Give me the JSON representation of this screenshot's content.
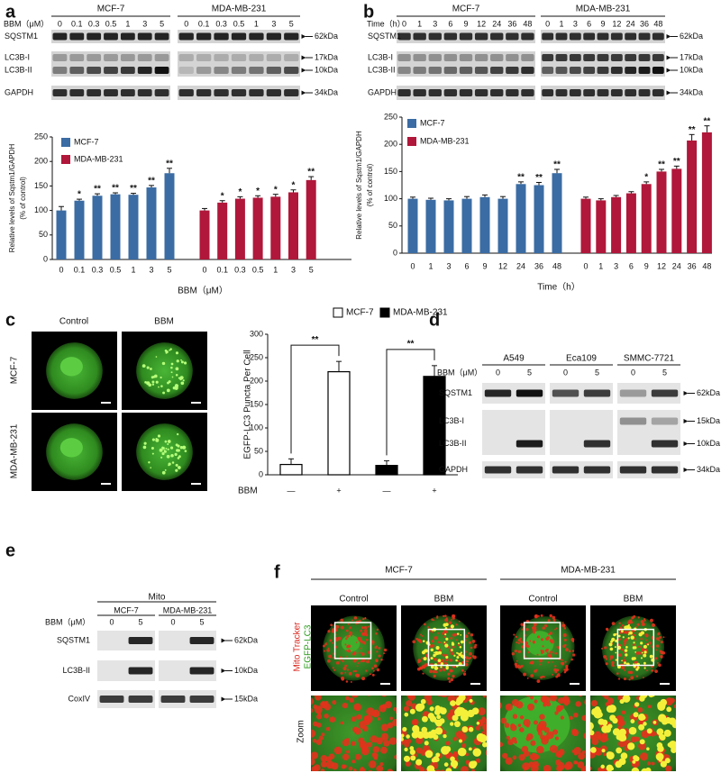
{
  "chart_data": [
    {
      "type": "bar",
      "x_label": "BBM（μM）",
      "y_label": [
        "Relative levels of Sqstm1/GAPDH",
        "(% of control)"
      ],
      "categories": [
        "0",
        "0.1",
        "0.3",
        "0.5",
        "1",
        "3",
        "5",
        "0",
        "0.1",
        "0.3",
        "0.5",
        "1",
        "3",
        "5"
      ],
      "series": [
        {
          "name": "MCF-7",
          "color": "#3b6ca3",
          "values": [
            100,
            120,
            130,
            133,
            132,
            147,
            176,
            null,
            null,
            null,
            null,
            null,
            null,
            null
          ],
          "errors": [
            8,
            3,
            4,
            3,
            3,
            4,
            10,
            null,
            null,
            null,
            null,
            null,
            null,
            null
          ],
          "annotations": [
            null,
            "*",
            "**",
            "**",
            "**",
            "**",
            "**",
            null,
            null,
            null,
            null,
            null,
            null,
            null
          ]
        },
        {
          "name": "MDA-MB-231",
          "color": "#b0173a",
          "values": [
            null,
            null,
            null,
            null,
            null,
            null,
            null,
            100,
            116,
            124,
            126,
            128,
            137,
            162
          ],
          "errors": [
            null,
            null,
            null,
            null,
            null,
            null,
            null,
            4,
            4,
            4,
            4,
            5,
            5,
            7
          ],
          "annotations": [
            null,
            null,
            null,
            null,
            null,
            null,
            null,
            null,
            "*",
            "*",
            "*",
            "*",
            "*",
            "**"
          ]
        }
      ],
      "ylim": [
        0,
        250
      ],
      "yticks": [
        0,
        50,
        100,
        150,
        200,
        250
      ],
      "grid": false
    },
    {
      "type": "bar",
      "x_label": "Time（h）",
      "y_label": [
        "Relative levels of Sqstm1/GAPDH",
        "(% of control)"
      ],
      "categories": [
        "0",
        "1",
        "3",
        "6",
        "9",
        "12",
        "24",
        "36",
        "48",
        "0",
        "1",
        "3",
        "6",
        "9",
        "12",
        "24",
        "36",
        "48"
      ],
      "series": [
        {
          "name": "MCF-7",
          "color": "#3b6ca3",
          "values": [
            100,
            98,
            97,
            100,
            103,
            100,
            127,
            125,
            147,
            null,
            null,
            null,
            null,
            null,
            null,
            null,
            null,
            null
          ],
          "errors": [
            3,
            3,
            3,
            4,
            4,
            4,
            4,
            5,
            7,
            null,
            null,
            null,
            null,
            null,
            null,
            null,
            null,
            null
          ],
          "annotations": [
            null,
            null,
            null,
            null,
            null,
            null,
            "**",
            "**",
            "**",
            null,
            null,
            null,
            null,
            null,
            null,
            null,
            null,
            null
          ]
        },
        {
          "name": "MDA-MB-231",
          "color": "#b0173a",
          "values": [
            null,
            null,
            null,
            null,
            null,
            null,
            null,
            null,
            null,
            100,
            97,
            103,
            110,
            127,
            150,
            155,
            207,
            222
          ],
          "errors": [
            null,
            null,
            null,
            null,
            null,
            null,
            null,
            null,
            null,
            3,
            3,
            3,
            3,
            4,
            4,
            5,
            11,
            12
          ],
          "annotations": [
            null,
            null,
            null,
            null,
            null,
            null,
            null,
            null,
            null,
            null,
            null,
            null,
            null,
            "*",
            "**",
            "**",
            "**",
            "**"
          ]
        }
      ],
      "ylim": [
        0,
        250
      ],
      "yticks": [
        0,
        50,
        100,
        150,
        200,
        250
      ],
      "grid": false
    },
    {
      "type": "bar",
      "x_label": "BBM",
      "y_label": "EGFP-LC3 Puncta Per Cell",
      "categories": [
        "—",
        "+",
        "—",
        "+"
      ],
      "series": [
        {
          "name": "MCF-7",
          "color": "#ffffff",
          "values": [
            22,
            220,
            null,
            null
          ],
          "errors": [
            12,
            22,
            null,
            null
          ],
          "annotations": [
            null,
            "**",
            null,
            null
          ]
        },
        {
          "name": "MDA-MB-231",
          "color": "#000000",
          "values": [
            null,
            null,
            20,
            210
          ],
          "errors": [
            null,
            null,
            10,
            23
          ],
          "annotations": [
            null,
            null,
            null,
            "**"
          ]
        }
      ],
      "ylim": [
        0,
        300
      ],
      "yticks": [
        0,
        50,
        100,
        150,
        200,
        250,
        300
      ],
      "grid": false
    }
  ],
  "panels": {
    "a": {
      "label": "a",
      "blot": {
        "groups": [
          "MCF-7",
          "MDA-MB-231"
        ],
        "lane_title": "BBM（μM）",
        "lanes": [
          [
            "0",
            "0.1",
            "0.3",
            "0.5",
            "1",
            "3",
            "5"
          ],
          [
            "0",
            "0.1",
            "0.3",
            "0.5",
            "1",
            "3",
            "5"
          ]
        ],
        "strips": [
          {
            "proteins": [
              "SQSTM1"
            ],
            "markers": [
              "62kDa"
            ]
          },
          {
            "proteins": [
              "LC3B-I",
              "LC3B-II"
            ],
            "markers": [
              "17kDa",
              "10kDa"
            ]
          },
          {
            "proteins": [
              "GAPDH"
            ],
            "markers": [
              "34kDa"
            ]
          }
        ]
      }
    },
    "b": {
      "label": "b",
      "blot": {
        "groups": [
          "MCF-7",
          "MDA-MB-231"
        ],
        "lane_title": "Time（h）",
        "lanes": [
          [
            "0",
            "1",
            "3",
            "6",
            "9",
            "12",
            "24",
            "36",
            "48"
          ],
          [
            "0",
            "1",
            "3",
            "6",
            "9",
            "12",
            "24",
            "36",
            "48"
          ]
        ],
        "strips": [
          {
            "proteins": [
              "SQSTM1"
            ],
            "markers": [
              "62kDa"
            ]
          },
          {
            "proteins": [
              "LC3B-I",
              "LC3B-II"
            ],
            "markers": [
              "17kDa",
              "10kDa"
            ]
          },
          {
            "proteins": [
              "GAPDH"
            ],
            "markers": [
              "34kDa"
            ]
          }
        ]
      }
    },
    "c": {
      "label": "c",
      "images": {
        "columns": [
          "Control",
          "BBM"
        ],
        "rows": [
          "MCF-7",
          "MDA-MB-231"
        ]
      }
    },
    "d": {
      "label": "d",
      "blot": {
        "groups": [
          "A549",
          "Eca109",
          "SMMC-7721"
        ],
        "lane_title": "BBM（μM）",
        "lanes": [
          [
            "0",
            "5"
          ],
          [
            "0",
            "5"
          ],
          [
            "0",
            "5"
          ]
        ],
        "strips": [
          {
            "proteins": [
              "SQSTM1"
            ],
            "markers": [
              "62kDa"
            ]
          },
          {
            "proteins": [
              "LC3B-I",
              "LC3B-II"
            ],
            "markers": [
              "15kDa",
              "10kDa"
            ]
          },
          {
            "proteins": [
              "GAPDH"
            ],
            "markers": [
              "34kDa"
            ]
          }
        ]
      }
    },
    "e": {
      "label": "e",
      "blot": {
        "title": "Mito",
        "groups": [
          "MCF-7",
          "MDA-MB-231"
        ],
        "lane_title": "BBM（μM）",
        "lanes": [
          [
            "0",
            "5"
          ],
          [
            "0",
            "5"
          ]
        ],
        "strips": [
          {
            "proteins": [
              "SQSTM1"
            ],
            "markers": [
              "62kDa"
            ]
          },
          {
            "proteins": [
              "LC3B-II"
            ],
            "markers": [
              "10kDa"
            ]
          },
          {
            "proteins": [
              "CoxIV"
            ],
            "markers": [
              "15kDa"
            ]
          }
        ]
      }
    },
    "f": {
      "label": "f",
      "images": {
        "groups": [
          "MCF-7",
          "MDA-MB-231"
        ],
        "columns": [
          [
            "Control",
            "BBM"
          ],
          [
            "Control",
            "BBM"
          ]
        ],
        "channels": [
          "Mito Tracker",
          "EGFP-LC3"
        ],
        "zoom_label": "Zoom"
      }
    }
  }
}
